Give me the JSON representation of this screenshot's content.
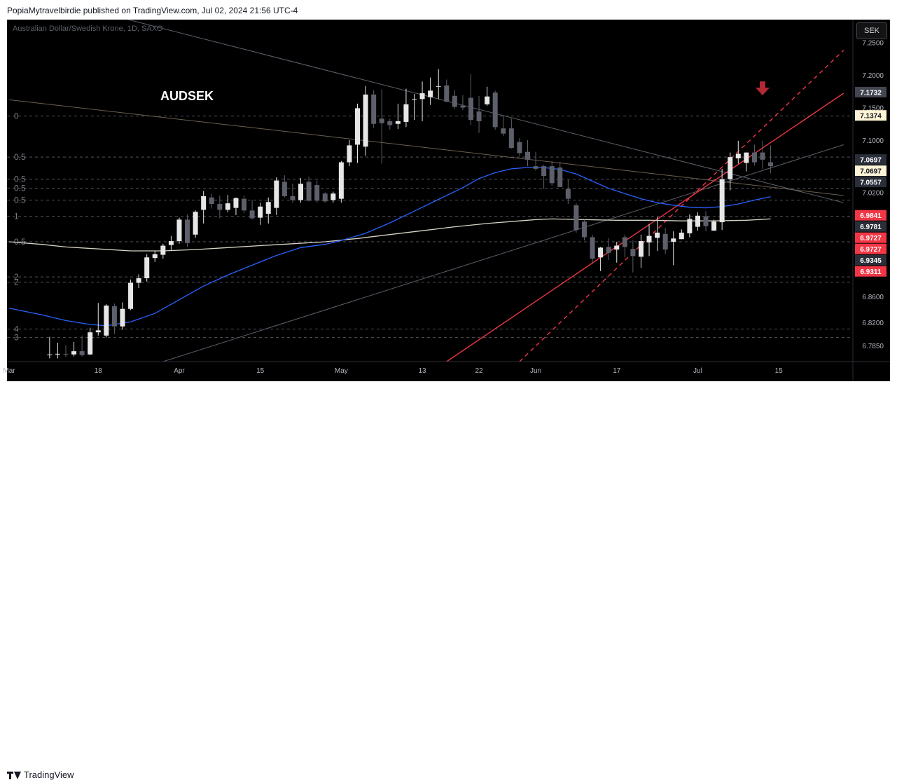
{
  "header": {
    "publish_text": "PopiaMytravelbirdie published on TradingView.com, Jul 02, 2024 21:56 UTC-4"
  },
  "chart_header": {
    "symbol_line": "Australian Dollar/Swedish Krone, 1D, SAXO",
    "currency_button": "SEK"
  },
  "footer": {
    "brand": "TradingView"
  },
  "colors": {
    "background": "#000000",
    "candle_up": "#e6e6e6",
    "candle_down": "#5d606b",
    "ma50": "#2962ff",
    "ma200": "#d6d2c4",
    "trendline_red": "#f23645",
    "arrow_down": "#b22833",
    "grid": "#2a2e39"
  },
  "icons": [
    "down-arrow-icon",
    "tradingview-logo-icon"
  ],
  "chart_data": {
    "type": "candlestick",
    "annotation_text": "AUDSEK",
    "y_axis": {
      "range": [
        6.76,
        7.285
      ],
      "ticks": [
        "7.2500",
        "7.2000",
        "7.1500",
        "7.1000",
        "7.0200",
        "6.8600",
        "6.8200",
        "6.7850"
      ],
      "tick_values": [
        7.25,
        7.2,
        7.15,
        7.1,
        7.02,
        6.86,
        6.82,
        6.785
      ]
    },
    "x_axis": {
      "labels": [
        "Mar",
        "18",
        "Apr",
        "15",
        "May",
        "13",
        "22",
        "Jun",
        "17",
        "Jul",
        "15"
      ],
      "label_index": [
        -1,
        10,
        20,
        30,
        40,
        50,
        57,
        64,
        74,
        84,
        94
      ]
    },
    "price_labels": [
      {
        "text": "7.1732",
        "value": 7.1732,
        "style": "gray"
      },
      {
        "text": "7.1374",
        "value": 7.1374,
        "style": "cream"
      },
      {
        "text": "7.0697",
        "value": 7.0697,
        "style": "dark"
      },
      {
        "text": "7.0697",
        "value": 7.0697,
        "style": "cream"
      },
      {
        "text": "7.0557",
        "value": 7.0557,
        "style": "dark"
      },
      {
        "text": "6.9841",
        "value": 6.9841,
        "style": "red"
      },
      {
        "text": "6.9781",
        "value": 6.9781,
        "style": "dark"
      },
      {
        "text": "6.9727",
        "value": 6.9727,
        "style": "red"
      },
      {
        "text": "6.9727",
        "value": 6.9727,
        "style": "red"
      },
      {
        "text": "6.9345",
        "value": 6.9345,
        "style": "dark"
      },
      {
        "text": "6.9311",
        "value": 6.9311,
        "style": "red"
      }
    ],
    "fib_levels": [
      {
        "label": "0",
        "value": 7.137
      },
      {
        "label": "0.5",
        "value": 7.074
      },
      {
        "label": "0.5",
        "value": 7.04
      },
      {
        "label": "0.5",
        "value": 7.026
      },
      {
        "label": "0.5",
        "value": 7.008
      },
      {
        "label": "1",
        "value": 6.983
      },
      {
        "label": "0.5",
        "value": 6.944
      },
      {
        "label": "2",
        "value": 6.89
      },
      {
        "label": "2",
        "value": 6.882
      },
      {
        "label": "4",
        "value": 6.81
      },
      {
        "label": "3",
        "value": 6.797
      }
    ],
    "candles": [
      {
        "i": 4,
        "o": 6.77,
        "h": 6.798,
        "l": 6.765,
        "c": 6.771
      },
      {
        "i": 5,
        "o": 6.771,
        "h": 6.789,
        "l": 6.765,
        "c": 6.772
      },
      {
        "i": 6,
        "o": 6.772,
        "h": 6.785,
        "l": 6.767,
        "c": 6.771
      },
      {
        "i": 7,
        "o": 6.771,
        "h": 6.79,
        "l": 6.768,
        "c": 6.776
      },
      {
        "i": 8,
        "o": 6.776,
        "h": 6.8,
        "l": 6.768,
        "c": 6.77
      },
      {
        "i": 9,
        "o": 6.771,
        "h": 6.812,
        "l": 6.77,
        "c": 6.805
      },
      {
        "i": 10,
        "o": 6.805,
        "h": 6.85,
        "l": 6.8,
        "c": 6.808
      },
      {
        "i": 11,
        "o": 6.8,
        "h": 6.848,
        "l": 6.797,
        "c": 6.846
      },
      {
        "i": 12,
        "o": 6.845,
        "h": 6.849,
        "l": 6.802,
        "c": 6.814
      },
      {
        "i": 13,
        "o": 6.814,
        "h": 6.851,
        "l": 6.809,
        "c": 6.841
      },
      {
        "i": 14,
        "o": 6.841,
        "h": 6.886,
        "l": 6.839,
        "c": 6.881
      },
      {
        "i": 15,
        "o": 6.881,
        "h": 6.894,
        "l": 6.873,
        "c": 6.888
      },
      {
        "i": 16,
        "o": 6.888,
        "h": 6.925,
        "l": 6.883,
        "c": 6.92
      },
      {
        "i": 17,
        "o": 6.919,
        "h": 6.93,
        "l": 6.913,
        "c": 6.925
      },
      {
        "i": 18,
        "o": 6.924,
        "h": 6.941,
        "l": 6.918,
        "c": 6.938
      },
      {
        "i": 19,
        "o": 6.939,
        "h": 6.953,
        "l": 6.93,
        "c": 6.945
      },
      {
        "i": 20,
        "o": 6.945,
        "h": 6.981,
        "l": 6.941,
        "c": 6.978
      },
      {
        "i": 21,
        "o": 6.978,
        "h": 6.986,
        "l": 6.936,
        "c": 6.942
      },
      {
        "i": 22,
        "o": 6.955,
        "h": 6.992,
        "l": 6.95,
        "c": 6.99
      },
      {
        "i": 23,
        "o": 6.993,
        "h": 7.022,
        "l": 6.972,
        "c": 7.014
      },
      {
        "i": 24,
        "o": 7.012,
        "h": 7.018,
        "l": 6.995,
        "c": 7.002
      },
      {
        "i": 25,
        "o": 7.002,
        "h": 7.015,
        "l": 6.98,
        "c": 6.993
      },
      {
        "i": 26,
        "o": 6.993,
        "h": 7.016,
        "l": 6.989,
        "c": 7.003
      },
      {
        "i": 27,
        "o": 6.996,
        "h": 7.012,
        "l": 6.985,
        "c": 7.011
      },
      {
        "i": 28,
        "o": 7.01,
        "h": 7.015,
        "l": 6.988,
        "c": 6.992
      },
      {
        "i": 29,
        "o": 6.992,
        "h": 7.008,
        "l": 6.978,
        "c": 6.98
      },
      {
        "i": 30,
        "o": 6.981,
        "h": 7.004,
        "l": 6.97,
        "c": 6.998
      },
      {
        "i": 31,
        "o": 6.987,
        "h": 7.012,
        "l": 6.972,
        "c": 7.005
      },
      {
        "i": 32,
        "o": 6.996,
        "h": 7.043,
        "l": 6.985,
        "c": 7.038
      },
      {
        "i": 33,
        "o": 7.036,
        "h": 7.046,
        "l": 7.012,
        "c": 7.014
      },
      {
        "i": 34,
        "o": 7.014,
        "h": 7.033,
        "l": 7.004,
        "c": 7.008
      },
      {
        "i": 35,
        "o": 7.008,
        "h": 7.042,
        "l": 7.004,
        "c": 7.033
      },
      {
        "i": 36,
        "o": 7.036,
        "h": 7.044,
        "l": 7.006,
        "c": 7.007
      },
      {
        "i": 37,
        "o": 7.031,
        "h": 7.038,
        "l": 7.004,
        "c": 7.007
      },
      {
        "i": 38,
        "o": 7.018,
        "h": 7.02,
        "l": 7.004,
        "c": 7.006
      },
      {
        "i": 39,
        "o": 7.008,
        "h": 7.021,
        "l": 7.004,
        "c": 7.018
      },
      {
        "i": 40,
        "o": 7.01,
        "h": 7.068,
        "l": 7.004,
        "c": 7.066
      },
      {
        "i": 41,
        "o": 7.066,
        "h": 7.1,
        "l": 7.06,
        "c": 7.092
      },
      {
        "i": 42,
        "o": 7.093,
        "h": 7.156,
        "l": 7.065,
        "c": 7.149
      },
      {
        "i": 43,
        "o": 7.09,
        "h": 7.183,
        "l": 7.076,
        "c": 7.17
      },
      {
        "i": 44,
        "o": 7.17,
        "h": 7.177,
        "l": 7.119,
        "c": 7.125
      },
      {
        "i": 45,
        "o": 7.133,
        "h": 7.178,
        "l": 7.064,
        "c": 7.126
      },
      {
        "i": 46,
        "o": 7.129,
        "h": 7.133,
        "l": 7.116,
        "c": 7.123
      },
      {
        "i": 47,
        "o": 7.125,
        "h": 7.156,
        "l": 7.117,
        "c": 7.129
      },
      {
        "i": 48,
        "o": 7.128,
        "h": 7.179,
        "l": 7.12,
        "c": 7.155
      },
      {
        "i": 49,
        "o": 7.162,
        "h": 7.171,
        "l": 7.131,
        "c": 7.163
      },
      {
        "i": 50,
        "o": 7.163,
        "h": 7.19,
        "l": 7.129,
        "c": 7.172
      },
      {
        "i": 51,
        "o": 7.166,
        "h": 7.196,
        "l": 7.154,
        "c": 7.176
      },
      {
        "i": 52,
        "o": 7.182,
        "h": 7.209,
        "l": 7.163,
        "c": 7.183
      },
      {
        "i": 53,
        "o": 7.184,
        "h": 7.193,
        "l": 7.158,
        "c": 7.159
      },
      {
        "i": 54,
        "o": 7.168,
        "h": 7.177,
        "l": 7.148,
        "c": 7.151
      },
      {
        "i": 55,
        "o": 7.153,
        "h": 7.169,
        "l": 7.146,
        "c": 7.15
      },
      {
        "i": 56,
        "o": 7.165,
        "h": 7.201,
        "l": 7.123,
        "c": 7.131
      },
      {
        "i": 57,
        "o": 7.144,
        "h": 7.168,
        "l": 7.111,
        "c": 7.129
      },
      {
        "i": 58,
        "o": 7.155,
        "h": 7.182,
        "l": 7.153,
        "c": 7.167
      },
      {
        "i": 59,
        "o": 7.173,
        "h": 7.176,
        "l": 7.116,
        "c": 7.12
      },
      {
        "i": 60,
        "o": 7.118,
        "h": 7.137,
        "l": 7.106,
        "c": 7.11
      },
      {
        "i": 61,
        "o": 7.118,
        "h": 7.133,
        "l": 7.087,
        "c": 7.088
      },
      {
        "i": 62,
        "o": 7.097,
        "h": 7.103,
        "l": 7.076,
        "c": 7.08
      },
      {
        "i": 63,
        "o": 7.082,
        "h": 7.1,
        "l": 7.06,
        "c": 7.07
      },
      {
        "i": 64,
        "o": 7.06,
        "h": 7.082,
        "l": 7.053,
        "c": 7.056
      },
      {
        "i": 65,
        "o": 7.06,
        "h": 7.062,
        "l": 7.025,
        "c": 7.045
      },
      {
        "i": 66,
        "o": 7.06,
        "h": 7.068,
        "l": 7.03,
        "c": 7.034
      },
      {
        "i": 67,
        "o": 7.058,
        "h": 7.067,
        "l": 7.028,
        "c": 7.028
      },
      {
        "i": 68,
        "o": 7.025,
        "h": 7.039,
        "l": 7.002,
        "c": 7.01
      },
      {
        "i": 69,
        "o": 7.0,
        "h": 7.003,
        "l": 6.958,
        "c": 6.962
      },
      {
        "i": 70,
        "o": 6.975,
        "h": 6.978,
        "l": 6.946,
        "c": 6.951
      },
      {
        "i": 71,
        "o": 6.951,
        "h": 6.955,
        "l": 6.91,
        "c": 6.918
      },
      {
        "i": 72,
        "o": 6.92,
        "h": 6.936,
        "l": 6.899,
        "c": 6.935
      },
      {
        "i": 73,
        "o": 6.936,
        "h": 6.95,
        "l": 6.916,
        "c": 6.927
      },
      {
        "i": 74,
        "o": 6.932,
        "h": 6.944,
        "l": 6.912,
        "c": 6.938
      },
      {
        "i": 75,
        "o": 6.951,
        "h": 6.955,
        "l": 6.92,
        "c": 6.936
      },
      {
        "i": 76,
        "o": 6.933,
        "h": 6.946,
        "l": 6.897,
        "c": 6.922
      },
      {
        "i": 77,
        "o": 6.921,
        "h": 6.955,
        "l": 6.904,
        "c": 6.945
      },
      {
        "i": 78,
        "o": 6.943,
        "h": 6.971,
        "l": 6.922,
        "c": 6.953
      },
      {
        "i": 79,
        "o": 6.95,
        "h": 6.982,
        "l": 6.93,
        "c": 6.958
      },
      {
        "i": 80,
        "o": 6.956,
        "h": 6.965,
        "l": 6.925,
        "c": 6.932
      },
      {
        "i": 81,
        "o": 6.944,
        "h": 6.96,
        "l": 6.908,
        "c": 6.949
      },
      {
        "i": 82,
        "o": 6.948,
        "h": 6.963,
        "l": 6.948,
        "c": 6.958
      },
      {
        "i": 83,
        "o": 6.957,
        "h": 6.986,
        "l": 6.951,
        "c": 6.979
      },
      {
        "i": 84,
        "o": 6.967,
        "h": 6.989,
        "l": 6.961,
        "c": 6.984
      },
      {
        "i": 85,
        "o": 6.983,
        "h": 6.991,
        "l": 6.96,
        "c": 6.968
      },
      {
        "i": 86,
        "o": 6.961,
        "h": 6.978,
        "l": 6.961,
        "c": 6.975
      },
      {
        "i": 87,
        "o": 6.974,
        "h": 7.056,
        "l": 6.962,
        "c": 7.04
      },
      {
        "i": 88,
        "o": 7.04,
        "h": 7.081,
        "l": 7.023,
        "c": 7.074
      },
      {
        "i": 89,
        "o": 7.072,
        "h": 7.099,
        "l": 7.064,
        "c": 7.079
      },
      {
        "i": 90,
        "o": 7.065,
        "h": 7.081,
        "l": 7.052,
        "c": 7.081
      },
      {
        "i": 91,
        "o": 7.081,
        "h": 7.093,
        "l": 7.061,
        "c": 7.066
      },
      {
        "i": 92,
        "o": 7.081,
        "h": 7.099,
        "l": 7.056,
        "c": 7.07
      },
      {
        "i": 93,
        "o": 7.066,
        "h": 7.092,
        "l": 7.049,
        "c": 7.06
      }
    ],
    "ma50": [
      [
        -1,
        6.842
      ],
      [
        3,
        6.832
      ],
      [
        6,
        6.823
      ],
      [
        9,
        6.817
      ],
      [
        11,
        6.815
      ],
      [
        14,
        6.821
      ],
      [
        17,
        6.834
      ],
      [
        20,
        6.855
      ],
      [
        23,
        6.876
      ],
      [
        26,
        6.893
      ],
      [
        29,
        6.908
      ],
      [
        32,
        6.923
      ],
      [
        35,
        6.935
      ],
      [
        38,
        6.94
      ],
      [
        40,
        6.946
      ],
      [
        43,
        6.957
      ],
      [
        46,
        6.973
      ],
      [
        49,
        6.991
      ],
      [
        52,
        7.009
      ],
      [
        55,
        7.027
      ],
      [
        57,
        7.041
      ],
      [
        59,
        7.05
      ],
      [
        61,
        7.056
      ],
      [
        63,
        7.058
      ],
      [
        65,
        7.058
      ],
      [
        67,
        7.055
      ],
      [
        69,
        7.048
      ],
      [
        71,
        7.037
      ],
      [
        73,
        7.026
      ],
      [
        75,
        7.018
      ],
      [
        77,
        7.01
      ],
      [
        79,
        7.004
      ],
      [
        81,
        7.0
      ],
      [
        83,
        6.997
      ],
      [
        85,
        6.996
      ],
      [
        87,
        6.998
      ],
      [
        89,
        7.002
      ],
      [
        91,
        7.008
      ],
      [
        93,
        7.013
      ]
    ],
    "ma200": [
      [
        -1,
        6.944
      ],
      [
        3,
        6.94
      ],
      [
        6,
        6.936
      ],
      [
        10,
        6.933
      ],
      [
        14,
        6.93
      ],
      [
        18,
        6.93
      ],
      [
        22,
        6.932
      ],
      [
        26,
        6.935
      ],
      [
        30,
        6.938
      ],
      [
        34,
        6.941
      ],
      [
        38,
        6.944
      ],
      [
        42,
        6.949
      ],
      [
        46,
        6.955
      ],
      [
        50,
        6.961
      ],
      [
        54,
        6.967
      ],
      [
        58,
        6.972
      ],
      [
        62,
        6.976
      ],
      [
        64,
        6.978
      ],
      [
        66,
        6.979
      ],
      [
        70,
        6.978
      ],
      [
        74,
        6.977
      ],
      [
        78,
        6.977
      ],
      [
        82,
        6.976
      ],
      [
        86,
        6.976
      ],
      [
        90,
        6.977
      ],
      [
        93,
        6.979
      ]
    ],
    "lines": [
      {
        "name": "upper-diag-line",
        "color": "#5d606b",
        "p1": [
          9,
          7.3
        ],
        "p2": [
          102,
          7.004
        ]
      },
      {
        "name": "upper-diag-line-2",
        "color": "#6b6050",
        "p1": [
          -1,
          7.162
        ],
        "p2": [
          102,
          7.015
        ]
      },
      {
        "name": "lower-rising-line",
        "color": "#5d606b",
        "p1": [
          18,
          6.76
        ],
        "p2": [
          102,
          7.093
        ]
      },
      {
        "name": "red-trendline",
        "color": "#f23645",
        "p1": [
          53,
          6.76
        ],
        "p2": [
          102,
          7.172
        ]
      },
      {
        "name": "red-dashed-trendline",
        "color": "#f23645",
        "p1": [
          62,
          6.76
        ],
        "p2": [
          102,
          7.238
        ]
      }
    ],
    "arrow_marker": {
      "index": 92,
      "value": 7.173
    },
    "grid": false,
    "legend": "none"
  }
}
